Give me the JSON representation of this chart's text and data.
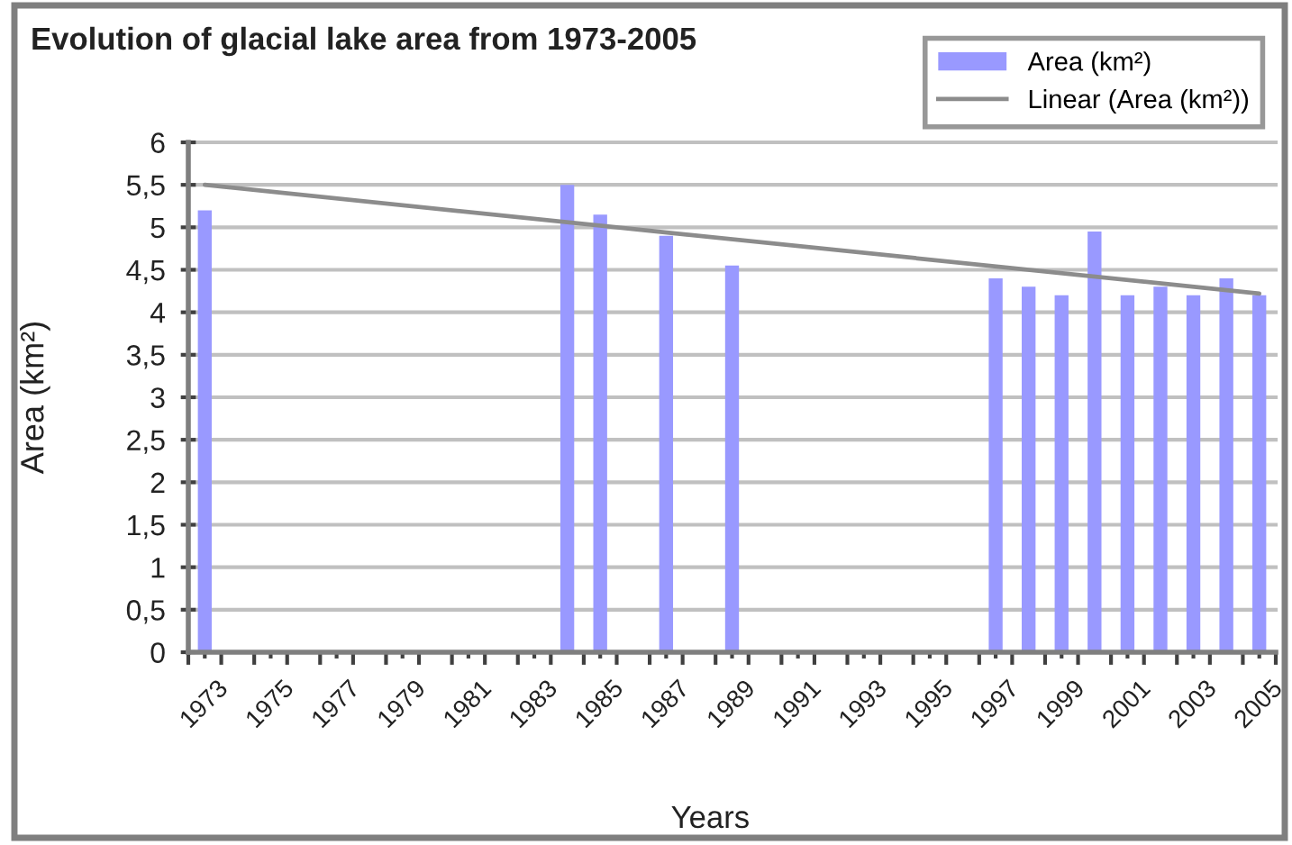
{
  "chart_data": {
    "type": "bar",
    "title": "Evolution of glacial lake area from 1973-2005",
    "xlabel": "Years",
    "ylabel": "Area (km²)",
    "series": [
      {
        "name": "Area (km²)",
        "type": "bar",
        "color": "#9999ff",
        "x": [
          1973,
          1984,
          1985,
          1987,
          1989,
          1997,
          1998,
          1999,
          2000,
          2001,
          2002,
          2003,
          2004,
          2005
        ],
        "values": [
          5.2,
          5.5,
          5.15,
          4.9,
          4.55,
          4.4,
          4.3,
          4.2,
          4.95,
          4.2,
          4.3,
          4.2,
          4.4,
          4.2
        ]
      },
      {
        "name": "Linear (Area (km²))",
        "type": "line",
        "color": "#8c8c8c",
        "x": [
          1973,
          2005
        ],
        "values": [
          5.5,
          4.22
        ]
      }
    ],
    "xlim": [
      1972.5,
      2005.5
    ],
    "xticks": [
      {
        "value": 1972.5,
        "label": null
      },
      1973,
      {
        "value": 1973.5,
        "label": null
      },
      {
        "value": 1974.5,
        "label": null
      },
      1975,
      {
        "value": 1975.5,
        "label": null
      },
      {
        "value": 1976.5,
        "label": null
      },
      1977,
      {
        "value": 1977.5,
        "label": null
      },
      {
        "value": 1978.5,
        "label": null
      },
      1979,
      {
        "value": 1979.5,
        "label": null
      },
      {
        "value": 1980.5,
        "label": null
      },
      1981,
      {
        "value": 1981.5,
        "label": null
      },
      {
        "value": 1982.5,
        "label": null
      },
      1983,
      {
        "value": 1983.5,
        "label": null
      },
      {
        "value": 1984.5,
        "label": null
      },
      1985,
      {
        "value": 1985.5,
        "label": null
      },
      {
        "value": 1986.5,
        "label": null
      },
      1987,
      {
        "value": 1987.5,
        "label": null
      },
      {
        "value": 1988.5,
        "label": null
      },
      1989,
      {
        "value": 1989.5,
        "label": null
      },
      {
        "value": 1990.5,
        "label": null
      },
      1991,
      {
        "value": 1991.5,
        "label": null
      },
      {
        "value": 1992.5,
        "label": null
      },
      1993,
      {
        "value": 1993.5,
        "label": null
      },
      {
        "value": 1994.5,
        "label": null
      },
      1995,
      {
        "value": 1995.5,
        "label": null
      },
      {
        "value": 1996.5,
        "label": null
      },
      1997,
      {
        "value": 1997.5,
        "label": null
      },
      {
        "value": 1998.5,
        "label": null
      },
      1999,
      {
        "value": 1999.5,
        "label": null
      },
      {
        "value": 2000.5,
        "label": null
      },
      2001,
      {
        "value": 2001.5,
        "label": null
      },
      {
        "value": 2002.5,
        "label": null
      },
      2003,
      {
        "value": 2003.5,
        "label": null
      },
      {
        "value": 2004.5,
        "label": null
      },
      2005,
      {
        "value": 2005.5,
        "label": null
      }
    ],
    "ylim": [
      0,
      6
    ],
    "yticks": [
      0,
      {
        "value": 0.5,
        "label": "0,5"
      },
      1,
      {
        "value": 1.5,
        "label": "1,5"
      },
      2,
      {
        "value": 2.5,
        "label": "2,5"
      },
      3,
      {
        "value": 3.5,
        "label": "3,5"
      },
      4,
      {
        "value": 4.5,
        "label": "4,5"
      },
      5,
      {
        "value": 5.5,
        "label": "5,5"
      },
      6
    ],
    "grid": "y",
    "legend": "top right"
  }
}
